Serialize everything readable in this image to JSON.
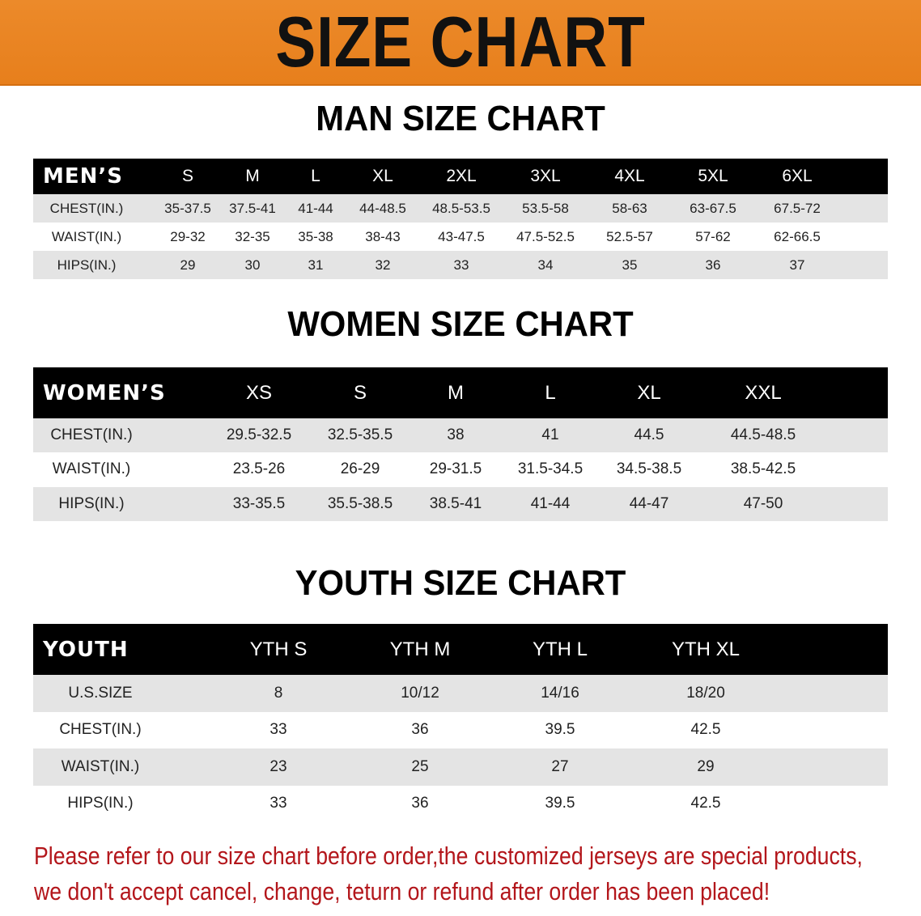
{
  "banner": {
    "title": "SIZE CHART",
    "color": "#e98424"
  },
  "men": {
    "title": "MAN SIZE CHART",
    "corner": "MEN’S",
    "columns": [
      "S",
      "M",
      "L",
      "XL",
      "2XL",
      "3XL",
      "4XL",
      "5XL",
      "6XL"
    ],
    "rows": [
      {
        "label": "CHEST(IN.)",
        "values": [
          "35-37.5",
          "37.5-41",
          "41-44",
          "44-48.5",
          "48.5-53.5",
          "53.5-58",
          "58-63",
          "63-67.5",
          "67.5-72"
        ]
      },
      {
        "label": "WAIST(IN.)",
        "values": [
          "29-32",
          "32-35",
          "35-38",
          "38-43",
          "43-47.5",
          "47.5-52.5",
          "52.5-57",
          "57-62",
          "62-66.5"
        ]
      },
      {
        "label": "HIPS(IN.)",
        "values": [
          "29",
          "30",
          "31",
          "32",
          "33",
          "34",
          "35",
          "36",
          "37"
        ]
      }
    ]
  },
  "women": {
    "title": "WOMEN SIZE CHART",
    "corner": "WOMEN’S",
    "columns": [
      "XS",
      "S",
      "M",
      "L",
      "XL",
      "XXL"
    ],
    "rows": [
      {
        "label": "CHEST(IN.)",
        "values": [
          "29.5-32.5",
          "32.5-35.5",
          "38",
          "41",
          "44.5",
          "44.5-48.5"
        ]
      },
      {
        "label": "WAIST(IN.)",
        "values": [
          "23.5-26",
          "26-29",
          "29-31.5",
          "31.5-34.5",
          "34.5-38.5",
          "38.5-42.5"
        ]
      },
      {
        "label": "HIPS(IN.)",
        "values": [
          "33-35.5",
          "35.5-38.5",
          "38.5-41",
          "41-44",
          "44-47",
          "47-50"
        ]
      }
    ]
  },
  "youth": {
    "title": "YOUTH SIZE CHART",
    "corner": "YOUTH",
    "columns": [
      "YTH S",
      "YTH M",
      "YTH L",
      "YTH XL"
    ],
    "rows": [
      {
        "label": "U.S.SIZE",
        "values": [
          "8",
          "10/12",
          "14/16",
          "18/20"
        ]
      },
      {
        "label": "CHEST(IN.)",
        "values": [
          "33",
          "36",
          "39.5",
          "42.5"
        ]
      },
      {
        "label": "WAIST(IN.)",
        "values": [
          "23",
          "25",
          "27",
          "29"
        ]
      },
      {
        "label": "HIPS(IN.)",
        "values": [
          "33",
          "36",
          "39.5",
          "42.5"
        ]
      }
    ]
  },
  "notice": {
    "line1": "Please refer to our size chart before order,the customized jerseys are special products,",
    "line2": "we don't accept cancel, change, teturn or refund after order has been placed!",
    "color": "#b3161b"
  }
}
